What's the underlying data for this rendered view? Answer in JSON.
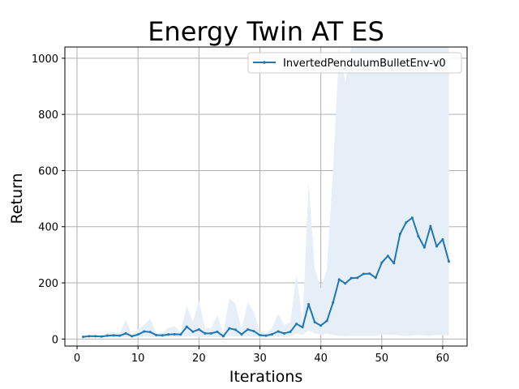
{
  "chart_data": {
    "type": "line",
    "title": "Energy Twin AT ES",
    "xlabel": "Iterations",
    "ylabel": "Return",
    "xlim": [
      -2,
      64
    ],
    "ylim": [
      -25,
      1040
    ],
    "xticks": [
      0,
      10,
      20,
      30,
      40,
      50,
      60
    ],
    "yticks": [
      0,
      200,
      400,
      600,
      800,
      1000
    ],
    "grid": true,
    "legend_position": "top-right",
    "colors": {
      "line": "#1f77b4",
      "band": "#e6eef7",
      "grid": "#b0b0b0"
    },
    "series": [
      {
        "name": "InvertedPendulumBulletEnv-v0",
        "x": [
          1,
          2,
          3,
          4,
          5,
          6,
          7,
          8,
          9,
          10,
          11,
          12,
          13,
          14,
          15,
          16,
          17,
          18,
          19,
          20,
          21,
          22,
          23,
          24,
          25,
          26,
          27,
          28,
          29,
          30,
          31,
          32,
          33,
          34,
          35,
          36,
          37,
          38,
          39,
          40,
          41,
          42,
          43,
          44,
          45,
          46,
          47,
          48,
          49,
          50,
          51,
          52,
          53,
          54,
          55,
          56,
          57,
          58,
          59,
          60,
          61
        ],
        "values": [
          8,
          10,
          10,
          9,
          12,
          13,
          12,
          20,
          10,
          16,
          27,
          25,
          14,
          13,
          16,
          17,
          16,
          44,
          26,
          34,
          20,
          20,
          26,
          10,
          38,
          33,
          17,
          34,
          28,
          14,
          12,
          17,
          27,
          20,
          26,
          54,
          42,
          124,
          60,
          48,
          65,
          130,
          212,
          198,
          217,
          218,
          232,
          233,
          218,
          272,
          296,
          270,
          374,
          415,
          432,
          366,
          326,
          402,
          330,
          355,
          276
        ],
        "upper": [
          12,
          15,
          14,
          12,
          22,
          25,
          18,
          70,
          14,
          35,
          50,
          72,
          20,
          22,
          40,
          45,
          25,
          120,
          60,
          135,
          40,
          38,
          85,
          20,
          145,
          125,
          35,
          130,
          95,
          25,
          20,
          40,
          90,
          50,
          60,
          230,
          60,
          560,
          250,
          180,
          250,
          600,
          1040,
          915,
          1040,
          1040,
          1040,
          1040,
          1040,
          1040,
          1040,
          1040,
          1040,
          1040,
          1040,
          1040,
          1040,
          1040,
          1040,
          1040,
          1040
        ],
        "lower": [
          5,
          6,
          7,
          6,
          6,
          6,
          7,
          5,
          6,
          6,
          10,
          8,
          8,
          6,
          6,
          6,
          7,
          10,
          10,
          8,
          8,
          8,
          8,
          5,
          10,
          10,
          8,
          10,
          10,
          6,
          6,
          6,
          10,
          8,
          10,
          20,
          15,
          30,
          20,
          15,
          20,
          15,
          12,
          10,
          12,
          12,
          12,
          12,
          12,
          15,
          15,
          15,
          12,
          12,
          12,
          15,
          12,
          12,
          15,
          15,
          12
        ]
      }
    ]
  }
}
